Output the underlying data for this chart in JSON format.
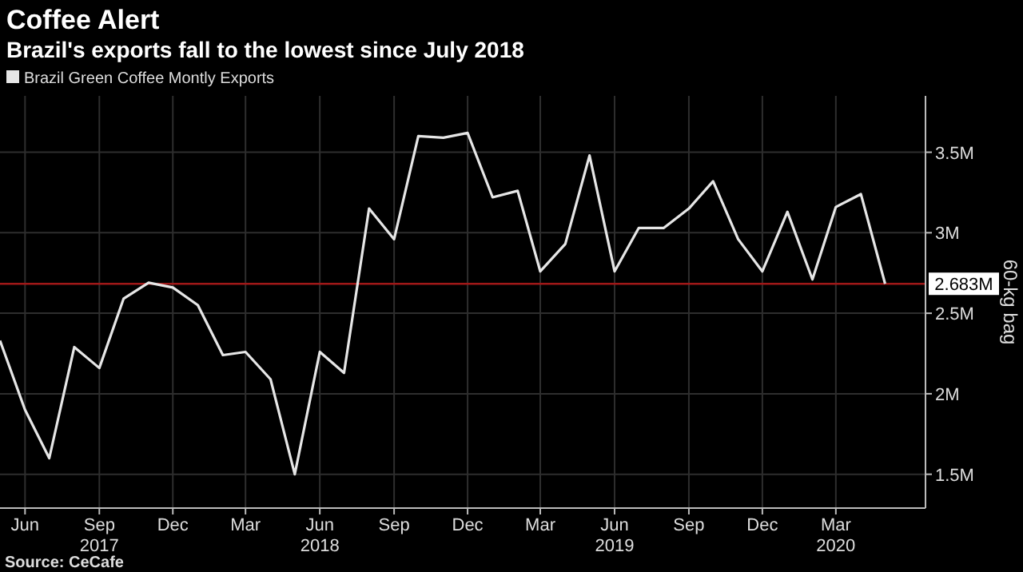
{
  "chart_data": {
    "type": "line",
    "title": "Coffee Alert",
    "subtitle": "Brazil's exports fall to the lowest since July 2018",
    "ylabel": "60-kg bag",
    "x": [
      "2017-05-01",
      "2017-06-01",
      "2017-07-01",
      "2017-08-01",
      "2017-09-01",
      "2017-10-01",
      "2017-11-01",
      "2017-12-01",
      "2018-01-01",
      "2018-02-01",
      "2018-03-01",
      "2018-04-01",
      "2018-05-01",
      "2018-06-01",
      "2018-07-01",
      "2018-08-01",
      "2018-09-01",
      "2018-10-01",
      "2018-11-01",
      "2018-12-01",
      "2019-01-01",
      "2019-02-01",
      "2019-03-01",
      "2019-04-01",
      "2019-05-01",
      "2019-06-01",
      "2019-07-01",
      "2019-08-01",
      "2019-09-01",
      "2019-10-01",
      "2019-11-01",
      "2019-12-01",
      "2020-01-01",
      "2020-02-01",
      "2020-03-01",
      "2020-04-01",
      "2020-05-01"
    ],
    "series": [
      {
        "name": "Brazil Green Coffee Montly Exports",
        "color": "#e6e6e6",
        "values": [
          2.33,
          1.9,
          1.6,
          2.29,
          2.16,
          2.59,
          2.69,
          2.66,
          2.55,
          2.24,
          2.26,
          2.09,
          1.5,
          2.26,
          2.13,
          3.15,
          2.96,
          3.6,
          3.59,
          3.62,
          3.22,
          3.26,
          2.76,
          2.93,
          3.48,
          2.76,
          3.03,
          3.03,
          3.15,
          3.32,
          2.96,
          2.76,
          3.13,
          2.71,
          3.16,
          3.24,
          2.683
        ]
      }
    ],
    "xlim": [
      "2017-05-01",
      "2020-06-20"
    ],
    "xticks": [
      {
        "value": "2017-06-01",
        "label": "Jun"
      },
      {
        "value": "2017-09-01",
        "label": "Sep\n2017"
      },
      {
        "value": "2017-12-01",
        "label": "Dec"
      },
      {
        "value": "2018-03-01",
        "label": "Mar"
      },
      {
        "value": "2018-06-01",
        "label": "Jun\n2018"
      },
      {
        "value": "2018-09-01",
        "label": "Sep"
      },
      {
        "value": "2018-12-01",
        "label": "Dec"
      },
      {
        "value": "2019-03-01",
        "label": "Mar"
      },
      {
        "value": "2019-06-01",
        "label": "Jun\n2019"
      },
      {
        "value": "2019-09-01",
        "label": "Sep"
      },
      {
        "value": "2019-12-01",
        "label": "Dec"
      },
      {
        "value": "2020-03-01",
        "label": "Mar\n2020"
      }
    ],
    "ylim": [
      1.29,
      3.85
    ],
    "yticks": [
      {
        "value": 1.5,
        "label": "1.5M"
      },
      {
        "value": 2,
        "label": "2M"
      },
      {
        "value": 2.5,
        "label": "2.5M"
      },
      {
        "value": 3,
        "label": "3M"
      },
      {
        "value": 3.5,
        "label": "3.5M"
      }
    ],
    "ref_lines": [
      {
        "axis": "y",
        "value": 2.683,
        "label": "2.683M",
        "color": "#a01818"
      }
    ],
    "grid": true,
    "legend": "top left",
    "annotations": [
      "Source: CeCafe"
    ]
  }
}
